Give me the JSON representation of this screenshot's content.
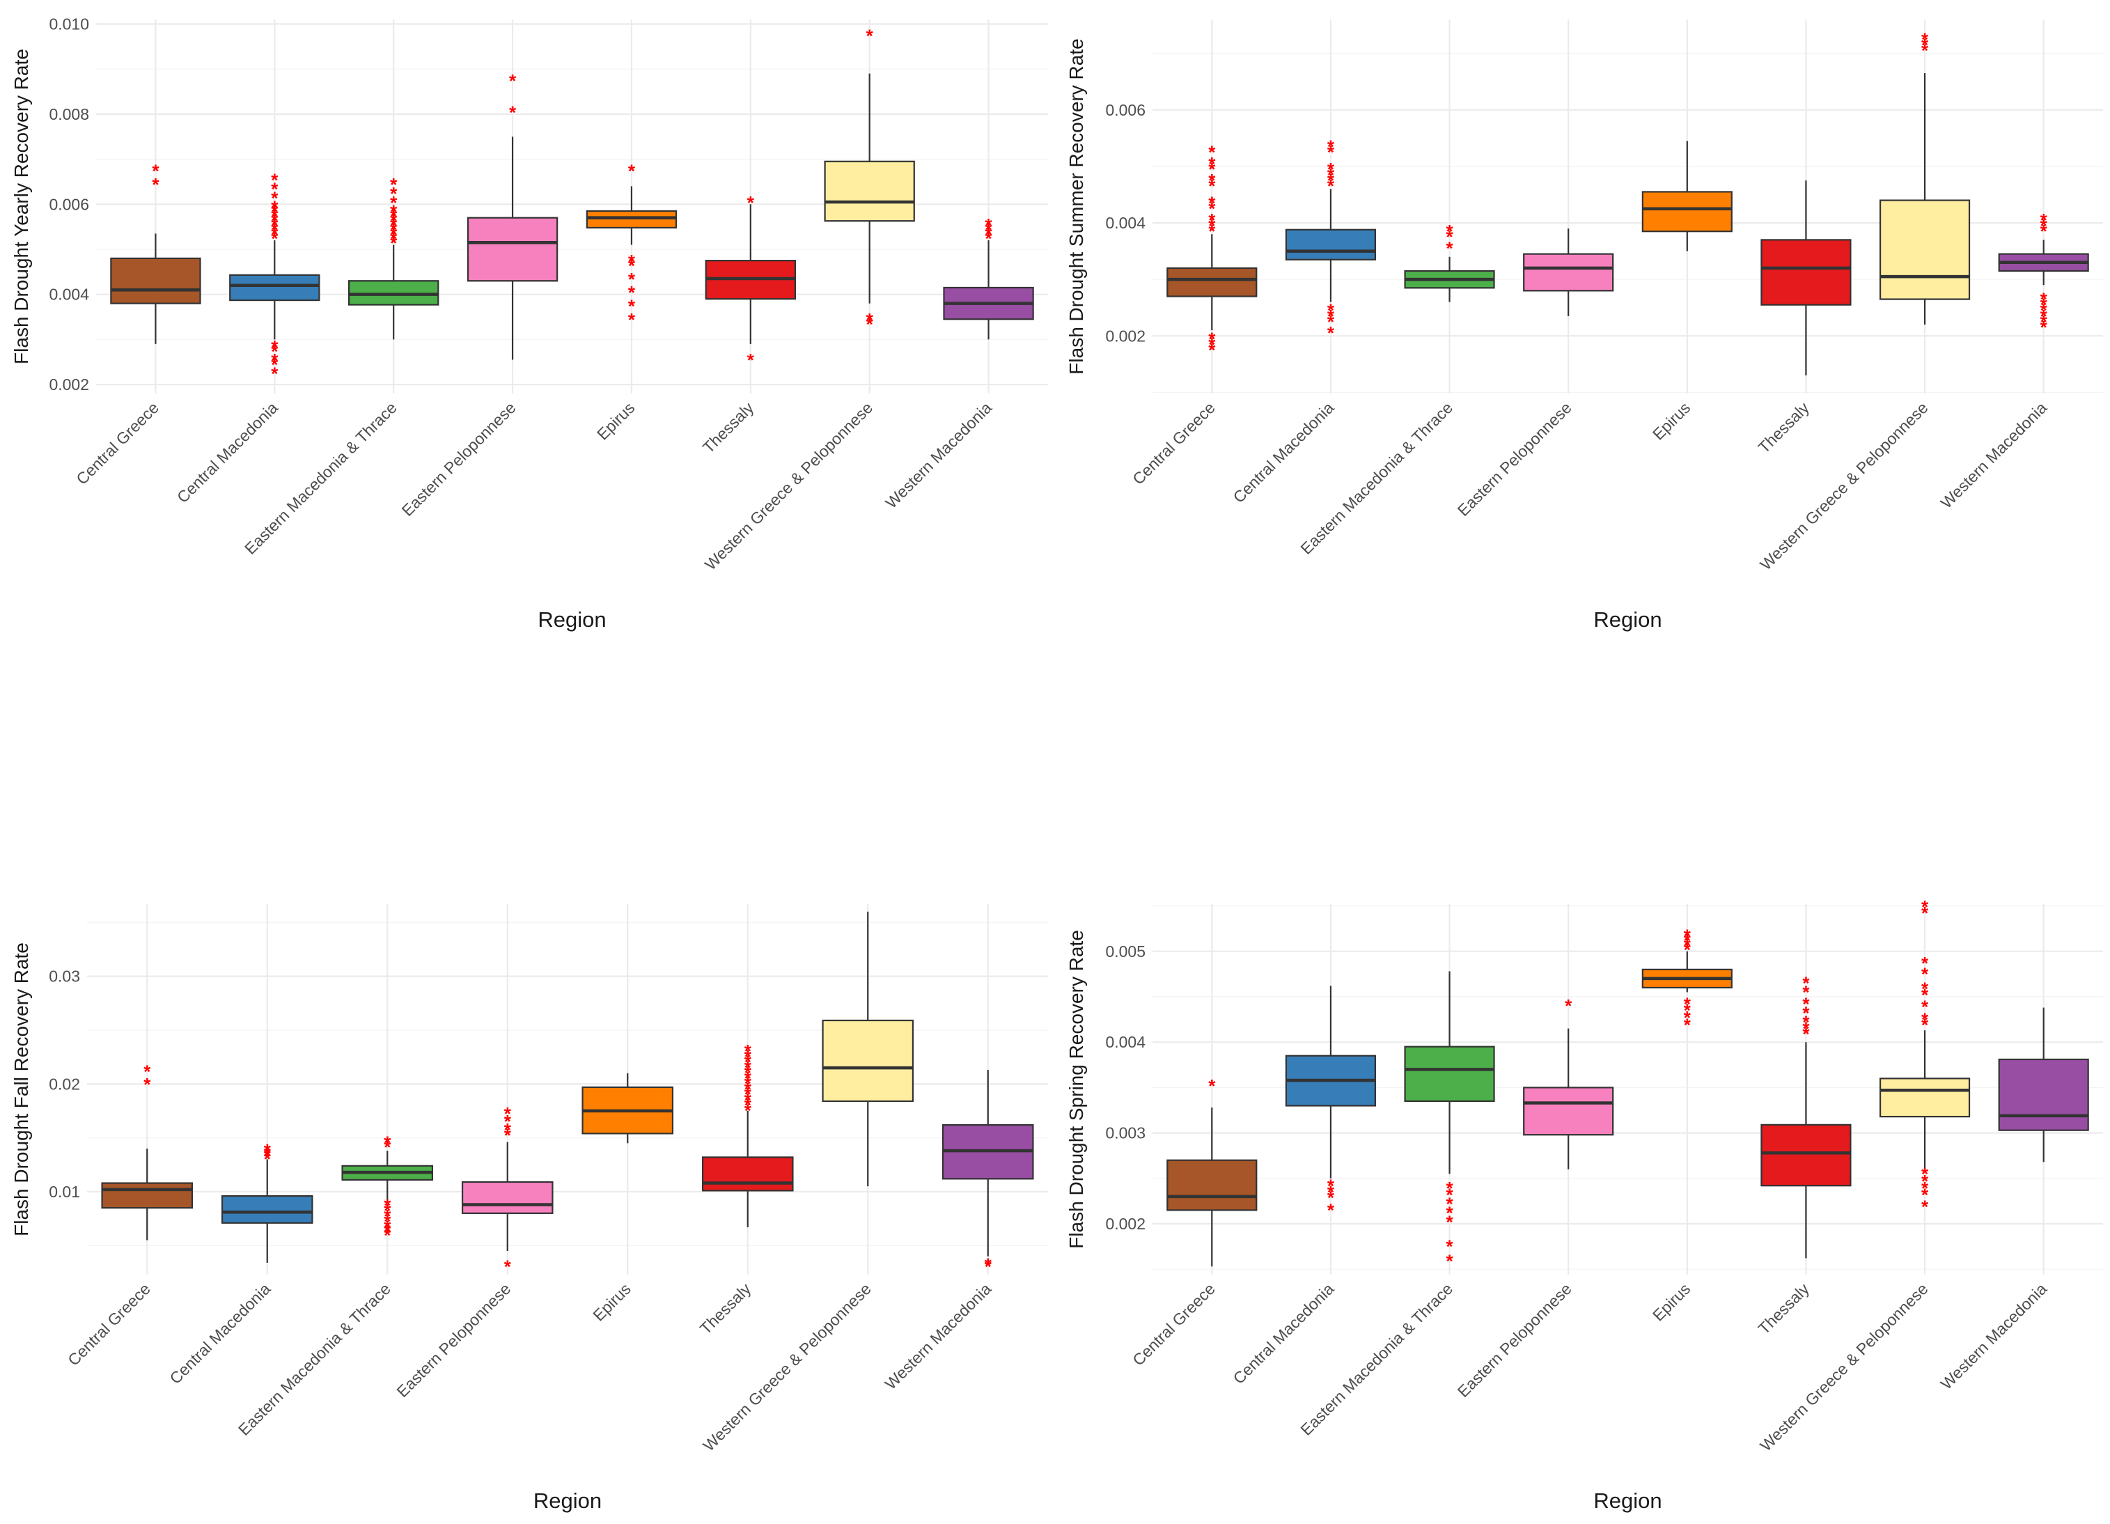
{
  "chart_data": [
    {
      "type": "box",
      "ylabel": "Flash Drought Yearly Recovery Rate",
      "xlabel": "Region",
      "ylim": [
        0.0018,
        0.0101
      ],
      "yticks": [
        0.002,
        0.004,
        0.006,
        0.008,
        0.01
      ],
      "ytick_labels": [
        "0.002",
        "0.004",
        "0.006",
        "0.008",
        "0.010"
      ],
      "categories": [
        "Central Greece",
        "Central Macedonia",
        "Eastern Macedonia & Thrace",
        "Eastern Peloponnese",
        "Epirus",
        "Thessaly",
        "Western Greece & Peloponnese",
        "Western Macedonia"
      ],
      "colors": [
        "#a65628",
        "#377eb8",
        "#4daf4a",
        "#f781bf",
        "#ff7f00",
        "#e41a1c",
        "#ffeda0",
        "#984ea3"
      ],
      "boxes": [
        {
          "whisker_low": 0.0029,
          "q1": 0.0038,
          "median": 0.0041,
          "q3": 0.0048,
          "whisker_high": 0.00535,
          "outliers": [
            0.0065,
            0.0068
          ]
        },
        {
          "whisker_low": 0.003,
          "q1": 0.00387,
          "median": 0.0042,
          "q3": 0.00443,
          "whisker_high": 0.0052,
          "outliers": [
            0.0053,
            0.0054,
            0.0055,
            0.0056,
            0.0057,
            0.0058,
            0.0059,
            0.006,
            0.0062,
            0.0064,
            0.0066,
            0.0029,
            0.0028,
            0.0026,
            0.0025,
            0.0023
          ]
        },
        {
          "whisker_low": 0.003,
          "q1": 0.00377,
          "median": 0.004,
          "q3": 0.0043,
          "whisker_high": 0.0051,
          "outliers": [
            0.0052,
            0.0053,
            0.0054,
            0.0055,
            0.0056,
            0.0057,
            0.0058,
            0.0059,
            0.0061,
            0.0063,
            0.0065
          ]
        },
        {
          "whisker_low": 0.00255,
          "q1": 0.0043,
          "median": 0.00515,
          "q3": 0.0057,
          "whisker_high": 0.0075,
          "outliers": [
            0.0081,
            0.0088
          ]
        },
        {
          "whisker_low": 0.0051,
          "q1": 0.00548,
          "median": 0.0057,
          "q3": 0.00585,
          "whisker_high": 0.0064,
          "outliers": [
            0.0068,
            0.0048,
            0.0047,
            0.0044,
            0.0041,
            0.0038,
            0.0035
          ]
        },
        {
          "whisker_low": 0.0029,
          "q1": 0.0039,
          "median": 0.00435,
          "q3": 0.00475,
          "whisker_high": 0.006,
          "outliers": [
            0.0061,
            0.0026
          ]
        },
        {
          "whisker_low": 0.0038,
          "q1": 0.00563,
          "median": 0.00605,
          "q3": 0.00695,
          "whisker_high": 0.0089,
          "outliers": [
            0.0098,
            0.0035,
            0.0034
          ]
        },
        {
          "whisker_low": 0.003,
          "q1": 0.00345,
          "median": 0.0038,
          "q3": 0.00415,
          "whisker_high": 0.0052,
          "outliers": [
            0.0053,
            0.0054,
            0.0055,
            0.0056
          ]
        }
      ]
    },
    {
      "type": "box",
      "ylabel": "Flash Drought Summer Recovery Rate",
      "xlabel": "Region",
      "ylim": [
        0.00098,
        0.0076
      ],
      "yticks": [
        0.002,
        0.004,
        0.006
      ],
      "ytick_labels": [
        "0.002",
        "0.004",
        "0.006"
      ],
      "categories": [
        "Central Greece",
        "Central Macedonia",
        "Eastern Macedonia & Thrace",
        "Eastern Peloponnese",
        "Epirus",
        "Thessaly",
        "Western Greece & Peloponnese",
        "Western Macedonia"
      ],
      "colors": [
        "#a65628",
        "#377eb8",
        "#4daf4a",
        "#f781bf",
        "#ff7f00",
        "#e41a1c",
        "#ffeda0",
        "#984ea3"
      ],
      "boxes": [
        {
          "whisker_low": 0.0021,
          "q1": 0.0027,
          "median": 0.003,
          "q3": 0.0032,
          "whisker_high": 0.0038,
          "outliers": [
            0.0039,
            0.004,
            0.0041,
            0.0043,
            0.0044,
            0.0047,
            0.0048,
            0.005,
            0.0051,
            0.0053,
            0.002,
            0.0019,
            0.0018
          ]
        },
        {
          "whisker_low": 0.0026,
          "q1": 0.00335,
          "median": 0.0035,
          "q3": 0.00388,
          "whisker_high": 0.0046,
          "outliers": [
            0.0047,
            0.0048,
            0.0049,
            0.005,
            0.0053,
            0.0054,
            0.0025,
            0.0024,
            0.0023,
            0.0021
          ]
        },
        {
          "whisker_low": 0.0026,
          "q1": 0.00285,
          "median": 0.003,
          "q3": 0.00315,
          "whisker_high": 0.0034,
          "outliers": [
            0.0036,
            0.0038,
            0.0039
          ]
        },
        {
          "whisker_low": 0.00235,
          "q1": 0.0028,
          "median": 0.0032,
          "q3": 0.00345,
          "whisker_high": 0.0039,
          "outliers": []
        },
        {
          "whisker_low": 0.0035,
          "q1": 0.00385,
          "median": 0.00425,
          "q3": 0.00455,
          "whisker_high": 0.00545,
          "outliers": []
        },
        {
          "whisker_low": 0.0013,
          "q1": 0.00255,
          "median": 0.0032,
          "q3": 0.0037,
          "whisker_high": 0.00475,
          "outliers": []
        },
        {
          "whisker_low": 0.0022,
          "q1": 0.00265,
          "median": 0.00305,
          "q3": 0.0044,
          "whisker_high": 0.00665,
          "outliers": [
            0.0071,
            0.0072,
            0.0073
          ]
        },
        {
          "whisker_low": 0.0029,
          "q1": 0.00315,
          "median": 0.0033,
          "q3": 0.00345,
          "whisker_high": 0.0037,
          "outliers": [
            0.0039,
            0.004,
            0.0041,
            0.0027,
            0.0026,
            0.0025,
            0.0024,
            0.0023,
            0.0022
          ]
        }
      ]
    },
    {
      "type": "box",
      "ylabel": "Flash Drought Fall Recovery Rate",
      "xlabel": "Region",
      "ylim": [
        0.0023,
        0.0367
      ],
      "yticks": [
        0.01,
        0.02,
        0.03
      ],
      "ytick_labels": [
        "0.01",
        "0.02",
        "0.03"
      ],
      "categories": [
        "Central Greece",
        "Central Macedonia",
        "Eastern Macedonia & Thrace",
        "Eastern Peloponnese",
        "Epirus",
        "Thessaly",
        "Western Greece & Peloponnese",
        "Western Macedonia"
      ],
      "colors": [
        "#a65628",
        "#377eb8",
        "#4daf4a",
        "#f781bf",
        "#ff7f00",
        "#e41a1c",
        "#ffeda0",
        "#984ea3"
      ],
      "boxes": [
        {
          "whisker_low": 0.0055,
          "q1": 0.0085,
          "median": 0.0102,
          "q3": 0.0108,
          "whisker_high": 0.014,
          "outliers": [
            0.0202,
            0.0214
          ]
        },
        {
          "whisker_low": 0.0034,
          "q1": 0.0071,
          "median": 0.0081,
          "q3": 0.0096,
          "whisker_high": 0.013,
          "outliers": [
            0.0133,
            0.0136,
            0.0138,
            0.0141
          ]
        },
        {
          "whisker_low": 0.009,
          "q1": 0.0111,
          "median": 0.0118,
          "q3": 0.0124,
          "whisker_high": 0.0138,
          "outliers": [
            0.0144,
            0.0148,
            0.009,
            0.0085,
            0.008,
            0.0075,
            0.007,
            0.0066,
            0.0062
          ]
        },
        {
          "whisker_low": 0.0045,
          "q1": 0.008,
          "median": 0.0088,
          "q3": 0.0109,
          "whisker_high": 0.0146,
          "outliers": [
            0.0155,
            0.016,
            0.0168,
            0.0175,
            0.0033
          ]
        },
        {
          "whisker_low": 0.0145,
          "q1": 0.0154,
          "median": 0.0175,
          "q3": 0.0197,
          "whisker_high": 0.021,
          "outliers": []
        },
        {
          "whisker_low": 0.0067,
          "q1": 0.0101,
          "median": 0.0108,
          "q3": 0.0132,
          "whisker_high": 0.0175,
          "outliers": [
            0.0178,
            0.0183,
            0.0188,
            0.0193,
            0.0198,
            0.0203,
            0.0208,
            0.0213,
            0.0218,
            0.0223,
            0.0228,
            0.0233
          ]
        },
        {
          "whisker_low": 0.0105,
          "q1": 0.0184,
          "median": 0.0215,
          "q3": 0.0259,
          "whisker_high": 0.036,
          "outliers": []
        },
        {
          "whisker_low": 0.004,
          "q1": 0.0112,
          "median": 0.0138,
          "q3": 0.0162,
          "whisker_high": 0.0213,
          "outliers": [
            0.0035,
            0.0033
          ]
        }
      ]
    },
    {
      "type": "box",
      "ylabel": "Flash Drought Spring Recovery Rate",
      "xlabel": "Region",
      "ylim": [
        0.00144,
        0.00552
      ],
      "yticks": [
        0.002,
        0.003,
        0.004,
        0.005
      ],
      "ytick_labels": [
        "0.002",
        "0.003",
        "0.004",
        "0.005"
      ],
      "categories": [
        "Central Greece",
        "Central Macedonia",
        "Eastern Macedonia & Thrace",
        "Eastern Peloponnese",
        "Epirus",
        "Thessaly",
        "Western Greece & Peloponnese",
        "Western Macedonia"
      ],
      "colors": [
        "#a65628",
        "#377eb8",
        "#4daf4a",
        "#f781bf",
        "#ff7f00",
        "#e41a1c",
        "#ffeda0",
        "#984ea3"
      ],
      "boxes": [
        {
          "whisker_low": 0.00153,
          "q1": 0.00215,
          "median": 0.0023,
          "q3": 0.0027,
          "whisker_high": 0.00328,
          "outliers": [
            0.00355
          ]
        },
        {
          "whisker_low": 0.0025,
          "q1": 0.0033,
          "median": 0.00358,
          "q3": 0.00385,
          "whisker_high": 0.00462,
          "outliers": [
            0.00245,
            0.00238,
            0.00232,
            0.00218
          ]
        },
        {
          "whisker_low": 0.00255,
          "q1": 0.00335,
          "median": 0.0037,
          "q3": 0.00395,
          "whisker_high": 0.00478,
          "outliers": [
            0.00242,
            0.00235,
            0.00225,
            0.00215,
            0.00205,
            0.00178,
            0.00162
          ]
        },
        {
          "whisker_low": 0.0026,
          "q1": 0.00298,
          "median": 0.00333,
          "q3": 0.0035,
          "whisker_high": 0.00415,
          "outliers": [
            0.00443
          ]
        },
        {
          "whisker_low": 0.00455,
          "q1": 0.0046,
          "median": 0.0047,
          "q3": 0.0048,
          "whisker_high": 0.005,
          "outliers": [
            0.00505,
            0.0051,
            0.00515,
            0.0052,
            0.00445,
            0.00438,
            0.0043,
            0.00422
          ]
        },
        {
          "whisker_low": 0.00162,
          "q1": 0.00242,
          "median": 0.00278,
          "q3": 0.00309,
          "whisker_high": 0.004,
          "outliers": [
            0.00412,
            0.00418,
            0.00425,
            0.00435,
            0.00445,
            0.00458,
            0.00468
          ]
        },
        {
          "whisker_low": 0.0026,
          "q1": 0.00318,
          "median": 0.00347,
          "q3": 0.0036,
          "whisker_high": 0.00413,
          "outliers": [
            0.00422,
            0.00428,
            0.00442,
            0.00455,
            0.00462,
            0.00478,
            0.0049,
            0.00545,
            0.00552,
            0.00258,
            0.0025,
            0.00242,
            0.00235,
            0.00222
          ]
        },
        {
          "whisker_low": 0.00268,
          "q1": 0.00303,
          "median": 0.00319,
          "q3": 0.00381,
          "whisker_high": 0.00438,
          "outliers": []
        }
      ]
    }
  ]
}
